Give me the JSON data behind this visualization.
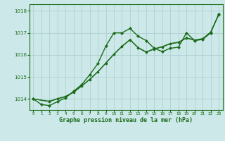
{
  "bg_color": "#cce8e8",
  "grid_color": "#aacccc",
  "line_color": "#1a6b1a",
  "title": "Graphe pression niveau de la mer (hPa)",
  "title_color": "#1a6b1a",
  "xlim": [
    -0.5,
    23.5
  ],
  "ylim": [
    1013.5,
    1018.3
  ],
  "yticks": [
    1014,
    1015,
    1016,
    1017,
    1018
  ],
  "xticks": [
    0,
    1,
    2,
    3,
    4,
    5,
    6,
    7,
    8,
    9,
    10,
    11,
    12,
    13,
    14,
    15,
    16,
    17,
    18,
    19,
    20,
    21,
    22,
    23
  ],
  "series1_x": [
    0,
    1,
    2,
    3,
    4,
    5,
    6,
    7,
    8,
    9,
    10,
    11,
    12,
    13,
    14,
    15,
    16,
    17,
    18,
    19,
    20,
    21,
    22,
    23
  ],
  "series1_y": [
    1014.0,
    1013.75,
    1013.7,
    1013.88,
    1014.05,
    1014.35,
    1014.65,
    1015.1,
    1015.6,
    1016.4,
    1017.0,
    1017.0,
    1017.2,
    1016.85,
    1016.65,
    1016.3,
    1016.15,
    1016.3,
    1016.35,
    1017.0,
    1016.65,
    1016.7,
    1017.0,
    1017.85
  ],
  "series2_x": [
    0,
    2,
    3,
    4,
    5,
    6,
    7,
    8,
    9,
    10,
    11,
    12,
    13,
    14,
    15,
    16,
    17,
    18,
    19,
    20,
    21,
    22,
    23
  ],
  "series2_y": [
    1014.0,
    1013.88,
    1014.0,
    1014.1,
    1014.3,
    1014.58,
    1014.88,
    1015.22,
    1015.62,
    1016.02,
    1016.38,
    1016.68,
    1016.32,
    1016.12,
    1016.26,
    1016.36,
    1016.5,
    1016.56,
    1016.76,
    1016.66,
    1016.72,
    1017.02,
    1017.82
  ],
  "series3_x": [
    0,
    2,
    3,
    4,
    5,
    6,
    7,
    8,
    9,
    10,
    11,
    12,
    13,
    14,
    15,
    16,
    17,
    18,
    19,
    20,
    21,
    22,
    23
  ],
  "series3_y": [
    1014.0,
    1013.9,
    1014.02,
    1014.12,
    1014.32,
    1014.6,
    1014.9,
    1015.24,
    1015.64,
    1016.04,
    1016.4,
    1016.7,
    1016.34,
    1016.14,
    1016.28,
    1016.38,
    1016.52,
    1016.58,
    1016.78,
    1016.68,
    1016.74,
    1017.04,
    1017.84
  ]
}
